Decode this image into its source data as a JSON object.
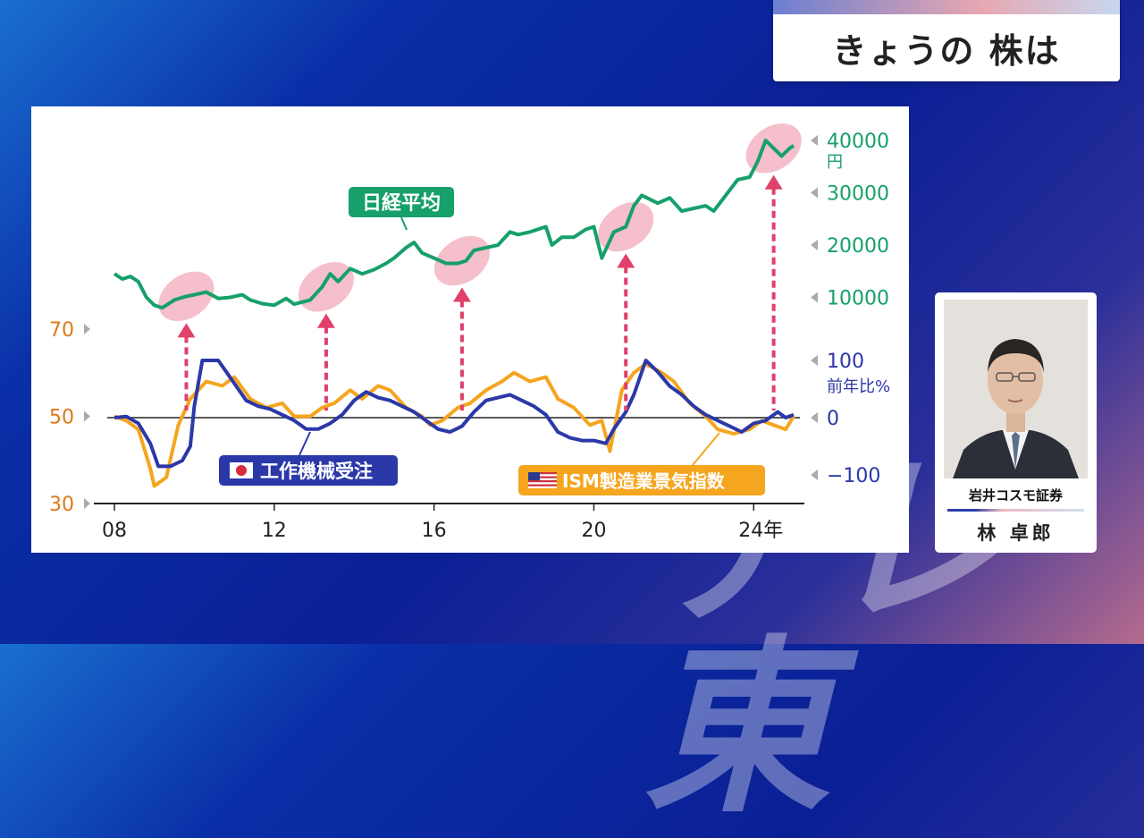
{
  "header": {
    "title": "きょうの 株は"
  },
  "watermark": {
    "text": "テレ東"
  },
  "analyst": {
    "firm": "岩井コスモ証券",
    "name": "林 卓郎"
  },
  "colors": {
    "nikkei": "#16a06a",
    "machine_orders": "#2b38a8",
    "ism": "#f5a51e",
    "left_axis": "#e07818",
    "arrow": "#e0406a",
    "highlight": "#f2aabb"
  },
  "chart_data": {
    "type": "line",
    "x_ticks": [
      "08",
      "12",
      "16",
      "20",
      "24年"
    ],
    "xlim": [
      2008,
      2025
    ],
    "left_axis": {
      "ticks": [
        "70",
        "50",
        "30"
      ],
      "ylim": [
        30,
        70
      ]
    },
    "right_axis_nikkei": {
      "ticks": [
        "40000",
        "30000",
        "20000",
        "10000"
      ],
      "unit": "円",
      "ylim": [
        0,
        40000
      ]
    },
    "right_axis_orders": {
      "ticks": [
        "100",
        "0",
        "−100"
      ],
      "unit": "前年比%",
      "ylim": [
        -100,
        100
      ]
    },
    "highlight_years": [
      2009.8,
      2013.3,
      2016.7,
      2020.8,
      2024.5
    ],
    "series": [
      {
        "name": "日経平均",
        "axis": "nikkei",
        "points": [
          [
            2008.0,
            14500
          ],
          [
            2008.2,
            13500
          ],
          [
            2008.4,
            14000
          ],
          [
            2008.6,
            13000
          ],
          [
            2008.8,
            10000
          ],
          [
            2009.0,
            8500
          ],
          [
            2009.2,
            8000
          ],
          [
            2009.5,
            9500
          ],
          [
            2009.8,
            10200
          ],
          [
            2010.0,
            10500
          ],
          [
            2010.3,
            11000
          ],
          [
            2010.6,
            9800
          ],
          [
            2010.9,
            10000
          ],
          [
            2011.2,
            10500
          ],
          [
            2011.4,
            9500
          ],
          [
            2011.7,
            8800
          ],
          [
            2012.0,
            8500
          ],
          [
            2012.3,
            9800
          ],
          [
            2012.5,
            8700
          ],
          [
            2012.9,
            9500
          ],
          [
            2013.2,
            12000
          ],
          [
            2013.4,
            14500
          ],
          [
            2013.6,
            13000
          ],
          [
            2013.9,
            15500
          ],
          [
            2014.2,
            14500
          ],
          [
            2014.5,
            15300
          ],
          [
            2014.8,
            16500
          ],
          [
            2015.0,
            17500
          ],
          [
            2015.3,
            19500
          ],
          [
            2015.5,
            20500
          ],
          [
            2015.7,
            18500
          ],
          [
            2016.0,
            17500
          ],
          [
            2016.3,
            16500
          ],
          [
            2016.6,
            16500
          ],
          [
            2016.8,
            17000
          ],
          [
            2017.0,
            19000
          ],
          [
            2017.3,
            19500
          ],
          [
            2017.6,
            20000
          ],
          [
            2017.9,
            22500
          ],
          [
            2018.1,
            22000
          ],
          [
            2018.4,
            22500
          ],
          [
            2018.8,
            23500
          ],
          [
            2018.95,
            20000
          ],
          [
            2019.2,
            21500
          ],
          [
            2019.5,
            21500
          ],
          [
            2019.8,
            23000
          ],
          [
            2020.0,
            23500
          ],
          [
            2020.2,
            17500
          ],
          [
            2020.5,
            22500
          ],
          [
            2020.8,
            23500
          ],
          [
            2021.0,
            27500
          ],
          [
            2021.2,
            29500
          ],
          [
            2021.6,
            28000
          ],
          [
            2021.9,
            29000
          ],
          [
            2022.2,
            26500
          ],
          [
            2022.5,
            27000
          ],
          [
            2022.8,
            27500
          ],
          [
            2023.0,
            26500
          ],
          [
            2023.3,
            29500
          ],
          [
            2023.6,
            32500
          ],
          [
            2023.9,
            33000
          ],
          [
            2024.1,
            36000
          ],
          [
            2024.3,
            40000
          ],
          [
            2024.5,
            38500
          ],
          [
            2024.7,
            37000
          ],
          [
            2024.9,
            38500
          ],
          [
            2025.0,
            39000
          ]
        ]
      },
      {
        "name": "工作機械受注",
        "axis": "orders",
        "points": [
          [
            2008.0,
            0
          ],
          [
            2008.3,
            2
          ],
          [
            2008.6,
            -10
          ],
          [
            2008.9,
            -45
          ],
          [
            2009.1,
            -85
          ],
          [
            2009.4,
            -85
          ],
          [
            2009.7,
            -75
          ],
          [
            2009.9,
            -50
          ],
          [
            2010.0,
            20
          ],
          [
            2010.2,
            100
          ],
          [
            2010.6,
            100
          ],
          [
            2010.8,
            80
          ],
          [
            2011.0,
            60
          ],
          [
            2011.3,
            30
          ],
          [
            2011.6,
            20
          ],
          [
            2011.9,
            15
          ],
          [
            2012.2,
            5
          ],
          [
            2012.5,
            -5
          ],
          [
            2012.8,
            -20
          ],
          [
            2013.1,
            -20
          ],
          [
            2013.4,
            -10
          ],
          [
            2013.7,
            5
          ],
          [
            2014.0,
            30
          ],
          [
            2014.3,
            45
          ],
          [
            2014.6,
            35
          ],
          [
            2014.9,
            30
          ],
          [
            2015.2,
            20
          ],
          [
            2015.5,
            10
          ],
          [
            2015.8,
            -5
          ],
          [
            2016.1,
            -20
          ],
          [
            2016.4,
            -25
          ],
          [
            2016.7,
            -15
          ],
          [
            2017.0,
            10
          ],
          [
            2017.3,
            30
          ],
          [
            2017.6,
            35
          ],
          [
            2017.9,
            40
          ],
          [
            2018.2,
            30
          ],
          [
            2018.5,
            20
          ],
          [
            2018.8,
            5
          ],
          [
            2019.1,
            -25
          ],
          [
            2019.4,
            -35
          ],
          [
            2019.7,
            -40
          ],
          [
            2020.0,
            -40
          ],
          [
            2020.3,
            -45
          ],
          [
            2020.5,
            -20
          ],
          [
            2020.8,
            10
          ],
          [
            2021.0,
            40
          ],
          [
            2021.3,
            100
          ],
          [
            2021.6,
            80
          ],
          [
            2021.9,
            55
          ],
          [
            2022.2,
            40
          ],
          [
            2022.5,
            20
          ],
          [
            2022.8,
            5
          ],
          [
            2023.1,
            -5
          ],
          [
            2023.4,
            -15
          ],
          [
            2023.7,
            -25
          ],
          [
            2024.0,
            -10
          ],
          [
            2024.3,
            -5
          ],
          [
            2024.6,
            10
          ],
          [
            2024.8,
            0
          ],
          [
            2025.0,
            5
          ]
        ]
      },
      {
        "name": "ISM製造業景気指数",
        "axis": "left",
        "points": [
          [
            2008.0,
            50
          ],
          [
            2008.3,
            49
          ],
          [
            2008.6,
            47
          ],
          [
            2008.9,
            38
          ],
          [
            2009.0,
            34
          ],
          [
            2009.3,
            36
          ],
          [
            2009.6,
            48
          ],
          [
            2009.9,
            54
          ],
          [
            2010.3,
            58
          ],
          [
            2010.7,
            57
          ],
          [
            2011.0,
            59
          ],
          [
            2011.4,
            54
          ],
          [
            2011.8,
            52
          ],
          [
            2012.2,
            53
          ],
          [
            2012.5,
            50
          ],
          [
            2012.9,
            50
          ],
          [
            2013.2,
            52
          ],
          [
            2013.5,
            53
          ],
          [
            2013.9,
            56
          ],
          [
            2014.2,
            54
          ],
          [
            2014.6,
            57
          ],
          [
            2014.9,
            56
          ],
          [
            2015.3,
            52
          ],
          [
            2015.7,
            50
          ],
          [
            2015.9,
            48
          ],
          [
            2016.2,
            49
          ],
          [
            2016.6,
            52
          ],
          [
            2016.9,
            53
          ],
          [
            2017.3,
            56
          ],
          [
            2017.7,
            58
          ],
          [
            2018.0,
            60
          ],
          [
            2018.4,
            58
          ],
          [
            2018.8,
            59
          ],
          [
            2019.1,
            54
          ],
          [
            2019.5,
            52
          ],
          [
            2019.9,
            48
          ],
          [
            2020.2,
            49
          ],
          [
            2020.4,
            42
          ],
          [
            2020.7,
            56
          ],
          [
            2021.0,
            60
          ],
          [
            2021.3,
            62
          ],
          [
            2021.7,
            60
          ],
          [
            2022.0,
            58
          ],
          [
            2022.4,
            53
          ],
          [
            2022.8,
            50
          ],
          [
            2023.1,
            47
          ],
          [
            2023.5,
            46
          ],
          [
            2023.9,
            47
          ],
          [
            2024.2,
            49
          ],
          [
            2024.5,
            48
          ],
          [
            2024.8,
            47
          ],
          [
            2025.0,
            50
          ]
        ]
      }
    ],
    "labels": {
      "nikkei": "日経平均",
      "machine_orders": "工作機械受注",
      "ism": "ISM製造業景気指数"
    }
  }
}
